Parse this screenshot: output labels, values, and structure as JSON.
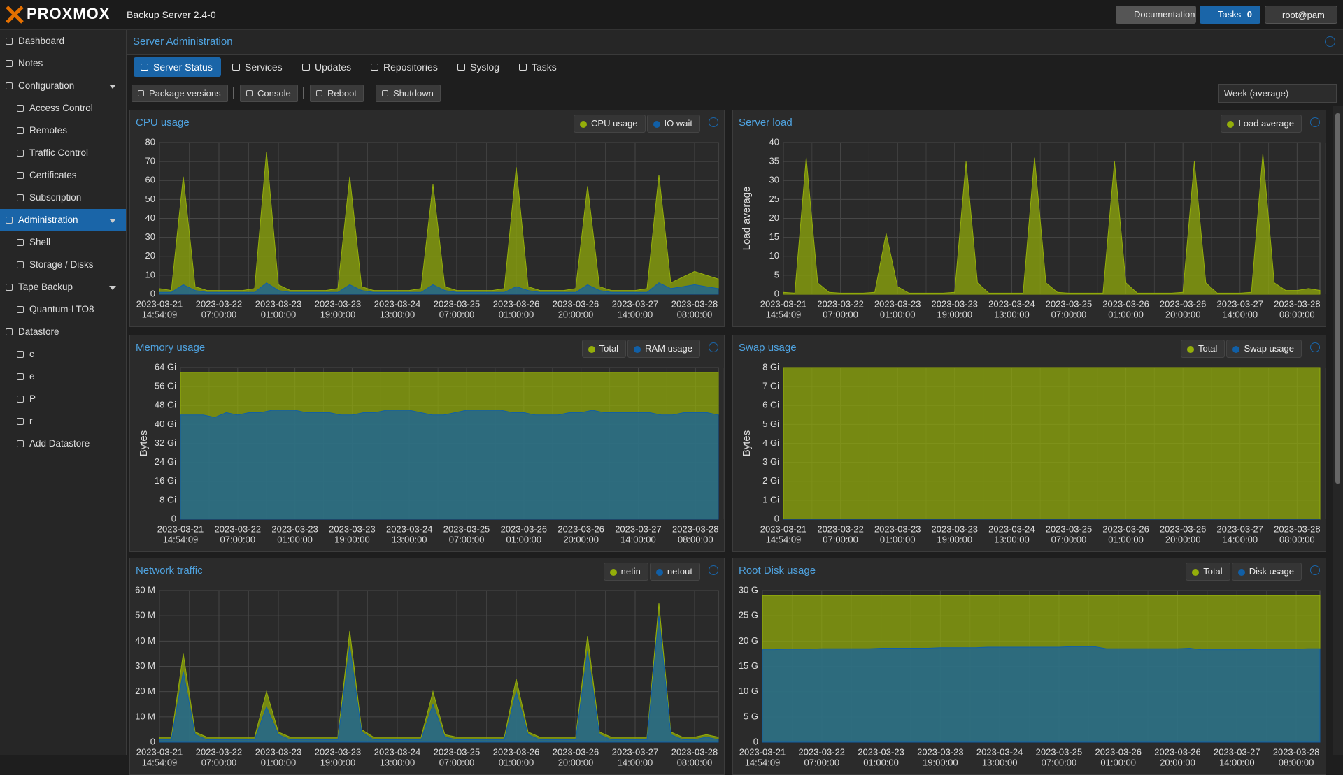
{
  "topbar": {
    "logo": "PROXMOX",
    "product": "Backup Server 2.4-0",
    "documentation": "Documentation",
    "tasks": "Tasks",
    "tasks_count": 0,
    "user": "root@pam"
  },
  "sidebar": [
    {
      "label": "Dashboard",
      "indent": false,
      "expand": false,
      "active": false
    },
    {
      "label": "Notes",
      "indent": false,
      "expand": false,
      "active": false
    },
    {
      "label": "Configuration",
      "indent": false,
      "expand": true,
      "active": false
    },
    {
      "label": "Access Control",
      "indent": true,
      "expand": false,
      "active": false
    },
    {
      "label": "Remotes",
      "indent": true,
      "expand": false,
      "active": false
    },
    {
      "label": "Traffic Control",
      "indent": true,
      "expand": false,
      "active": false
    },
    {
      "label": "Certificates",
      "indent": true,
      "expand": false,
      "active": false
    },
    {
      "label": "Subscription",
      "indent": true,
      "expand": false,
      "active": false
    },
    {
      "label": "Administration",
      "indent": false,
      "expand": true,
      "active": true
    },
    {
      "label": "Shell",
      "indent": true,
      "expand": false,
      "active": false
    },
    {
      "label": "Storage / Disks",
      "indent": true,
      "expand": false,
      "active": false
    },
    {
      "label": "Tape Backup",
      "indent": false,
      "expand": true,
      "active": false
    },
    {
      "label": "Quantum-LTO8",
      "indent": true,
      "expand": false,
      "active": false
    },
    {
      "label": "Datastore",
      "indent": false,
      "expand": false,
      "active": false
    },
    {
      "label": "c",
      "indent": true,
      "expand": false,
      "active": false
    },
    {
      "label": "e",
      "indent": true,
      "expand": false,
      "active": false
    },
    {
      "label": "P",
      "indent": true,
      "expand": false,
      "active": false
    },
    {
      "label": "r",
      "indent": true,
      "expand": false,
      "active": false
    },
    {
      "label": "Add Datastore",
      "indent": true,
      "expand": false,
      "active": false
    }
  ],
  "panel": {
    "title": "Server Administration",
    "tabs": [
      {
        "label": "Server Status",
        "active": true
      },
      {
        "label": "Services",
        "active": false
      },
      {
        "label": "Updates",
        "active": false
      },
      {
        "label": "Repositories",
        "active": false
      },
      {
        "label": "Syslog",
        "active": false
      },
      {
        "label": "Tasks",
        "active": false
      }
    ],
    "toolbar": [
      "Package versions",
      "Console",
      "Reboot",
      "Shutdown"
    ],
    "timeframe": "Week (average)"
  },
  "time_axis": [
    {
      "date": "2023-03-21",
      "time": "14:54:09"
    },
    {
      "date": "2023-03-22",
      "time": "07:00:00"
    },
    {
      "date": "2023-03-23",
      "time": "01:00:00"
    },
    {
      "date": "2023-03-23",
      "time": "19:00:00"
    },
    {
      "date": "2023-03-24",
      "time": "13:00:00"
    },
    {
      "date": "2023-03-25",
      "time": "07:00:00"
    },
    {
      "date": "2023-03-26",
      "time": "01:00:00"
    },
    {
      "date": "2023-03-26",
      "time": "20:00:00"
    },
    {
      "date": "2023-03-27",
      "time": "14:00:00"
    },
    {
      "date": "2023-03-28",
      "time": "08:00:00"
    }
  ],
  "charts": [
    {
      "type": "area",
      "title": "CPU usage",
      "ylim": [
        0,
        80
      ],
      "yticks": [
        0,
        10,
        20,
        30,
        40,
        50,
        60,
        70,
        80
      ],
      "series": [
        {
          "name": "CPU usage",
          "color": "#94ae0a",
          "values": [
            3,
            2,
            62,
            4,
            2,
            2,
            2,
            2,
            3,
            75,
            5,
            2,
            2,
            2,
            2,
            3,
            62,
            4,
            2,
            2,
            2,
            2,
            3,
            58,
            4,
            2,
            2,
            2,
            2,
            3,
            67,
            4,
            2,
            2,
            2,
            3,
            57,
            4,
            2,
            2,
            2,
            3,
            63,
            6,
            9,
            12,
            10,
            8
          ]
        },
        {
          "name": "IO wait",
          "color": "#115fa6",
          "values": [
            1,
            1,
            5,
            2,
            1,
            1,
            1,
            1,
            1,
            6,
            2,
            1,
            1,
            1,
            1,
            1,
            5,
            2,
            1,
            1,
            1,
            1,
            1,
            5,
            2,
            1,
            1,
            1,
            1,
            1,
            4,
            2,
            1,
            1,
            1,
            1,
            5,
            2,
            1,
            1,
            1,
            1,
            6,
            3,
            4,
            5,
            4,
            3
          ]
        }
      ]
    },
    {
      "type": "area",
      "title": "Server load",
      "ylabel": "Load average",
      "ylim": [
        0,
        40
      ],
      "yticks": [
        0,
        5,
        10,
        15,
        20,
        25,
        30,
        35,
        40
      ],
      "series": [
        {
          "name": "Load average",
          "color": "#94ae0a",
          "values": [
            0.5,
            0.3,
            36,
            3,
            0.5,
            0.3,
            0.3,
            0.3,
            0.5,
            16,
            2,
            0.3,
            0.3,
            0.3,
            0.3,
            0.5,
            35,
            3,
            0.3,
            0.3,
            0.3,
            0.3,
            36,
            3,
            0.5,
            0.3,
            0.3,
            0.3,
            0.3,
            35,
            3,
            0.3,
            0.3,
            0.3,
            0.3,
            0.5,
            35,
            3,
            0.3,
            0.3,
            0.3,
            0.5,
            37,
            3,
            1,
            1,
            1.5,
            1
          ]
        }
      ]
    },
    {
      "type": "area",
      "title": "Memory usage",
      "ylabel": "Bytes",
      "ylim": [
        0,
        64
      ],
      "yticks": [
        0,
        {
          "value": 8,
          "label": "8 Gi"
        },
        {
          "value": 16,
          "label": "16 Gi"
        },
        {
          "value": 24,
          "label": "24 Gi"
        },
        {
          "value": 32,
          "label": "32 Gi"
        },
        {
          "value": 40,
          "label": "40 Gi"
        },
        {
          "value": 48,
          "label": "48 Gi"
        },
        {
          "value": 56,
          "label": "56 Gi"
        },
        {
          "value": 64,
          "label": "64 Gi"
        }
      ],
      "series": [
        {
          "name": "Total",
          "color": "#94ae0a",
          "values": [
            62,
            62,
            62,
            62,
            62,
            62,
            62,
            62,
            62,
            62,
            62,
            62,
            62,
            62,
            62,
            62,
            62,
            62,
            62,
            62,
            62,
            62,
            62,
            62,
            62,
            62,
            62,
            62,
            62,
            62,
            62,
            62,
            62,
            62,
            62,
            62,
            62,
            62,
            62,
            62,
            62,
            62,
            62,
            62,
            62,
            62,
            62,
            62
          ]
        },
        {
          "name": "RAM usage",
          "color": "#115fa6",
          "values": [
            44,
            44,
            44,
            43,
            45,
            44,
            45,
            45,
            46,
            46,
            46,
            45,
            45,
            45,
            44,
            44,
            45,
            45,
            46,
            46,
            46,
            45,
            44,
            44,
            45,
            46,
            46,
            46,
            46,
            45,
            45,
            44,
            44,
            44,
            45,
            45,
            46,
            45,
            45,
            45,
            45,
            45,
            44,
            44,
            45,
            45,
            45,
            44
          ]
        }
      ]
    },
    {
      "type": "area",
      "title": "Swap usage",
      "ylabel": "Bytes",
      "ylim": [
        0,
        8
      ],
      "yticks": [
        0,
        {
          "value": 1,
          "label": "1 Gi"
        },
        {
          "value": 2,
          "label": "2 Gi"
        },
        {
          "value": 3,
          "label": "3 Gi"
        },
        {
          "value": 4,
          "label": "4 Gi"
        },
        {
          "value": 5,
          "label": "5 Gi"
        },
        {
          "value": 6,
          "label": "6 Gi"
        },
        {
          "value": 7,
          "label": "7 Gi"
        },
        {
          "value": 8,
          "label": "8 Gi"
        }
      ],
      "series": [
        {
          "name": "Total",
          "color": "#94ae0a",
          "values": [
            8,
            8,
            8,
            8,
            8,
            8,
            8,
            8,
            8,
            8,
            8,
            8,
            8,
            8,
            8,
            8,
            8,
            8,
            8,
            8,
            8,
            8,
            8,
            8,
            8,
            8,
            8,
            8,
            8,
            8,
            8,
            8,
            8,
            8,
            8,
            8,
            8,
            8,
            8,
            8,
            8,
            8,
            8,
            8,
            8,
            8,
            8,
            8
          ]
        },
        {
          "name": "Swap usage",
          "color": "#115fa6",
          "values": [
            0,
            0,
            0,
            0,
            0,
            0,
            0,
            0,
            0,
            0,
            0,
            0,
            0,
            0,
            0,
            0,
            0,
            0,
            0,
            0,
            0,
            0,
            0,
            0,
            0,
            0,
            0,
            0,
            0,
            0,
            0,
            0,
            0,
            0,
            0,
            0,
            0,
            0,
            0,
            0,
            0,
            0,
            0,
            0,
            0,
            0,
            0,
            0
          ]
        }
      ]
    },
    {
      "type": "area",
      "title": "Network traffic",
      "ylim": [
        0,
        60
      ],
      "yticks": [
        0,
        {
          "value": 10,
          "label": "10 M"
        },
        {
          "value": 20,
          "label": "20 M"
        },
        {
          "value": 30,
          "label": "30 M"
        },
        {
          "value": 40,
          "label": "40 M"
        },
        {
          "value": 50,
          "label": "50 M"
        },
        {
          "value": 60,
          "label": "60 M"
        }
      ],
      "series": [
        {
          "name": "netin",
          "color": "#94ae0a",
          "values": [
            2,
            2,
            35,
            4,
            2,
            2,
            2,
            2,
            2,
            20,
            4,
            2,
            2,
            2,
            2,
            2,
            44,
            5,
            2,
            2,
            2,
            2,
            2,
            20,
            3,
            2,
            2,
            2,
            2,
            2,
            25,
            4,
            2,
            2,
            2,
            2,
            42,
            4,
            2,
            2,
            2,
            2,
            55,
            4,
            2,
            2,
            3,
            2
          ]
        },
        {
          "name": "netout",
          "color": "#115fa6",
          "values": [
            1,
            1,
            28,
            3,
            1,
            1,
            1,
            1,
            1,
            14,
            3,
            1,
            1,
            1,
            1,
            1,
            38,
            4,
            1,
            1,
            1,
            1,
            1,
            15,
            2,
            1,
            1,
            1,
            1,
            1,
            20,
            3,
            1,
            1,
            1,
            1,
            36,
            3,
            1,
            1,
            1,
            1,
            50,
            3,
            1,
            1,
            2,
            1
          ]
        }
      ]
    },
    {
      "type": "area",
      "title": "Root Disk usage",
      "ylim": [
        0,
        30
      ],
      "yticks": [
        0,
        {
          "value": 5,
          "label": "5 G"
        },
        {
          "value": 10,
          "label": "10 G"
        },
        {
          "value": 15,
          "label": "15 G"
        },
        {
          "value": 20,
          "label": "20 G"
        },
        {
          "value": 25,
          "label": "25 G"
        },
        {
          "value": 30,
          "label": "30 G"
        }
      ],
      "series": [
        {
          "name": "Total",
          "color": "#94ae0a",
          "values": [
            29,
            29,
            29,
            29,
            29,
            29,
            29,
            29,
            29,
            29,
            29,
            29,
            29,
            29,
            29,
            29,
            29,
            29,
            29,
            29,
            29,
            29,
            29,
            29,
            29,
            29,
            29,
            29,
            29,
            29,
            29,
            29,
            29,
            29,
            29,
            29,
            29,
            29,
            29,
            29,
            29,
            29,
            29,
            29,
            29,
            29,
            29,
            29
          ]
        },
        {
          "name": "Disk usage",
          "color": "#115fa6",
          "values": [
            18.3,
            18.3,
            18.4,
            18.4,
            18.4,
            18.5,
            18.5,
            18.5,
            18.5,
            18.5,
            18.6,
            18.6,
            18.6,
            18.6,
            18.6,
            18.7,
            18.7,
            18.7,
            18.7,
            18.8,
            18.8,
            18.8,
            18.8,
            18.8,
            18.8,
            18.8,
            18.9,
            18.9,
            18.9,
            18.5,
            18.5,
            18.5,
            18.5,
            18.5,
            18.5,
            18.5,
            18.6,
            18.3,
            18.3,
            18.3,
            18.3,
            18.3,
            18.4,
            18.4,
            18.4,
            18.4,
            18.5,
            18.5
          ]
        }
      ]
    }
  ]
}
